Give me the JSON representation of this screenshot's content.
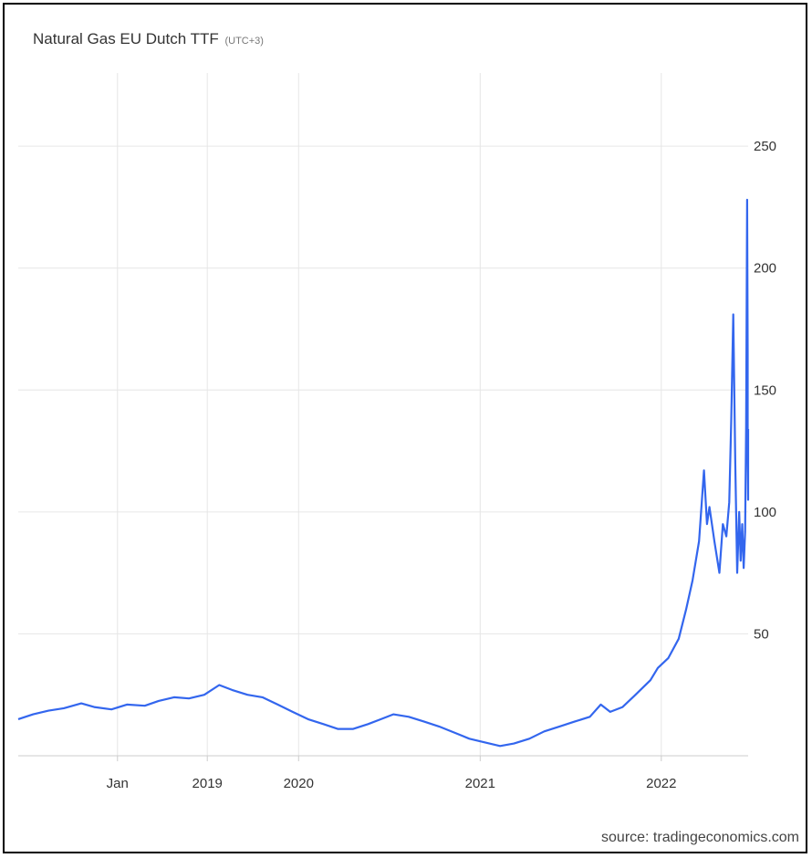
{
  "header": {
    "title": "Natural Gas EU Dutch TTF",
    "timezone": "(UTC+3)"
  },
  "footer": {
    "source": "source: tradingeconomics.com"
  },
  "colors": {
    "line": "#3366ee",
    "grid": "#e6e6e6",
    "axis": "#cccccc"
  },
  "chart_data": {
    "type": "line",
    "title": "Natural Gas EU Dutch TTF",
    "xlabel": "",
    "ylabel": "",
    "ylim": [
      0,
      280
    ],
    "yticks": [
      50,
      100,
      150,
      200,
      250
    ],
    "xlim": [
      "2018-06-15",
      "2022-06-25"
    ],
    "xticks": [
      {
        "label": "Jan",
        "date": "2019-01-01"
      },
      {
        "label": "2019",
        "date": "2019-07-01"
      },
      {
        "label": "2020",
        "date": "2020-01-01"
      },
      {
        "label": "2021",
        "date": "2021-01-01"
      },
      {
        "label": "2022",
        "date": "2022-01-01"
      }
    ],
    "grid": true,
    "series": [
      {
        "values": [
          [
            "2018-06-15",
            15
          ],
          [
            "2018-07-15",
            17
          ],
          [
            "2018-08-15",
            18.5
          ],
          [
            "2018-09-15",
            19.5
          ],
          [
            "2018-10-20",
            21.5
          ],
          [
            "2018-11-15",
            20
          ],
          [
            "2018-12-20",
            19
          ],
          [
            "2019-01-20",
            21
          ],
          [
            "2019-02-25",
            20.5
          ],
          [
            "2019-03-25",
            22.5
          ],
          [
            "2019-04-25",
            24
          ],
          [
            "2019-05-25",
            23.5
          ],
          [
            "2019-06-25",
            25
          ],
          [
            "2019-07-25",
            29
          ],
          [
            "2019-08-20",
            27
          ],
          [
            "2019-09-20",
            25
          ],
          [
            "2019-10-20",
            24
          ],
          [
            "2019-11-20",
            21
          ],
          [
            "2019-12-20",
            18
          ],
          [
            "2020-01-20",
            15
          ],
          [
            "2020-02-20",
            13
          ],
          [
            "2020-03-20",
            11
          ],
          [
            "2020-04-20",
            11
          ],
          [
            "2020-05-20",
            13
          ],
          [
            "2020-06-15",
            15
          ],
          [
            "2020-07-10",
            17
          ],
          [
            "2020-08-10",
            16
          ],
          [
            "2020-09-10",
            14
          ],
          [
            "2020-10-10",
            12
          ],
          [
            "2020-11-10",
            9.5
          ],
          [
            "2020-12-10",
            7
          ],
          [
            "2021-01-10",
            5.5
          ],
          [
            "2021-02-10",
            4
          ],
          [
            "2021-03-10",
            5
          ],
          [
            "2021-04-10",
            7
          ],
          [
            "2021-05-10",
            10
          ],
          [
            "2021-06-10",
            12
          ],
          [
            "2021-07-10",
            14
          ],
          [
            "2021-08-10",
            16
          ],
          [
            "2021-09-01",
            21
          ],
          [
            "2021-09-20",
            18
          ],
          [
            "2021-10-15",
            20
          ],
          [
            "2021-11-10",
            25
          ],
          [
            "2021-12-10",
            31
          ],
          [
            "2021-12-25",
            36
          ],
          [
            "2022-01-15",
            40
          ],
          [
            "2022-02-05",
            48
          ],
          [
            "2022-02-20",
            60
          ],
          [
            "2022-03-05",
            72
          ],
          [
            "2022-03-18",
            88
          ],
          [
            "2022-03-28",
            117
          ],
          [
            "2022-04-03",
            95
          ],
          [
            "2022-04-08",
            102
          ],
          [
            "2022-04-18",
            88
          ],
          [
            "2022-04-28",
            75
          ],
          [
            "2022-05-05",
            95
          ],
          [
            "2022-05-12",
            90
          ],
          [
            "2022-05-18",
            104
          ],
          [
            "2022-05-22",
            138
          ],
          [
            "2022-05-26",
            181
          ],
          [
            "2022-05-30",
            120
          ],
          [
            "2022-06-03",
            75
          ],
          [
            "2022-06-07",
            100
          ],
          [
            "2022-06-10",
            80
          ],
          [
            "2022-06-13",
            95
          ],
          [
            "2022-06-16",
            77
          ],
          [
            "2022-06-19",
            92
          ],
          [
            "2022-06-21",
            135
          ],
          [
            "2022-06-22",
            185
          ],
          [
            "2022-06-23",
            228
          ],
          [
            "2022-06-24",
            165
          ],
          [
            "2022-06-24",
            125
          ],
          [
            "2022-06-25",
            105
          ],
          [
            "2022-06-25",
            134
          ]
        ]
      }
    ]
  }
}
